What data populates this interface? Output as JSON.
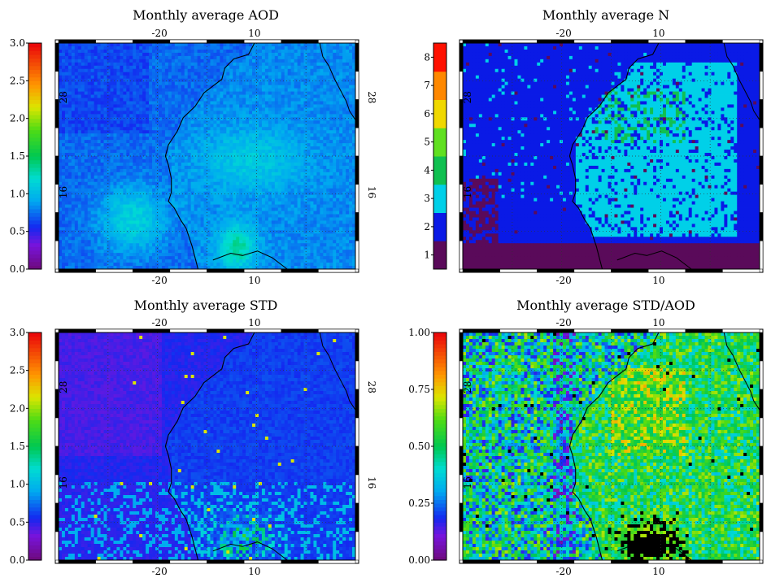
{
  "chart_data": [
    {
      "type": "heatmap",
      "title": "Monthly average AOD",
      "colorbar": {
        "min": 0.0,
        "max": 3.0,
        "ticks": [
          "0.0",
          "0.5",
          "1.0",
          "1.5",
          "2.0",
          "2.5",
          "3.0"
        ],
        "scheme": "rainbow"
      },
      "x_ticks": [
        "-20",
        "10"
      ],
      "y_ticks": [
        "16",
        "28"
      ],
      "field": "aod",
      "value_range_shown": [
        0.2,
        1.2
      ]
    },
    {
      "type": "heatmap",
      "title": "Monthly average N",
      "colorbar": {
        "min": 1,
        "max": 8,
        "ticks": [
          "1",
          "2",
          "3",
          "4",
          "5",
          "6",
          "7",
          "8"
        ],
        "scheme": "discrete",
        "colors": [
          "#5a0a5a",
          "#0a1ae6",
          "#00d0e8",
          "#10c050",
          "#60e020",
          "#f0d800",
          "#ff8800",
          "#ff1000"
        ]
      },
      "x_ticks": [
        "-20",
        "10"
      ],
      "y_ticks": [
        "16",
        "28"
      ],
      "field": "n"
    },
    {
      "type": "heatmap",
      "title": "Monthly average STD",
      "colorbar": {
        "min": 0.0,
        "max": 3.0,
        "ticks": [
          "0.0",
          "0.5",
          "1.0",
          "1.5",
          "2.0",
          "2.5",
          "3.0"
        ],
        "scheme": "rainbow"
      },
      "x_ticks": [
        "-20",
        "10"
      ],
      "y_ticks": [
        "16",
        "28"
      ],
      "field": "std"
    },
    {
      "type": "heatmap",
      "title": "Monthly average STD/AOD",
      "colorbar": {
        "min": 0.0,
        "max": 1.0,
        "ticks": [
          "0.00",
          "0.25",
          "0.50",
          "0.75",
          "1.00"
        ],
        "scheme": "rainbow"
      },
      "x_ticks": [
        "-20",
        "10"
      ],
      "y_ticks": [
        "16",
        "28"
      ],
      "field": "ratio"
    }
  ]
}
